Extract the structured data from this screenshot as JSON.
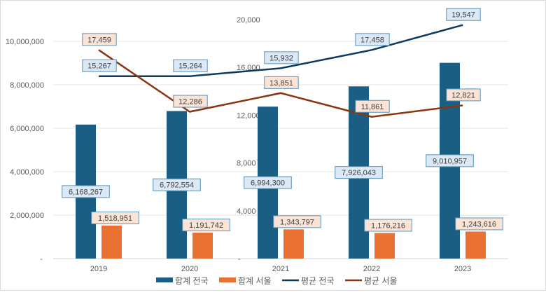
{
  "chart_data": {
    "type": "bar",
    "categories": [
      "2019",
      "2020",
      "2021",
      "2022",
      "2023"
    ],
    "left_axis": {
      "range": [
        0,
        11000000
      ],
      "ticks": [
        0,
        2000000,
        4000000,
        6000000,
        8000000,
        10000000
      ],
      "tick_labels": [
        "-",
        "2,000,000",
        "4,000,000",
        "6,000,000",
        "8,000,000",
        "10,000,000"
      ]
    },
    "right_axis": {
      "range": [
        0,
        20000
      ],
      "ticks": [
        0,
        4000,
        8000,
        12000,
        16000,
        20000
      ],
      "tick_labels": [
        "-",
        "4,000",
        "8,000",
        "12,000",
        "16,000",
        "20,000"
      ]
    },
    "grid": true,
    "legend_position": "bottom",
    "series": [
      {
        "name": "합계 전국",
        "kind": "bar",
        "axis": "left",
        "color": "#1a5f83",
        "label_bg": "#dbe8f5",
        "label_border": "#5b93b8",
        "values": [
          6168267,
          6792554,
          6994300,
          7926043,
          9010957
        ],
        "labels": [
          "6,168,267",
          "6,792,554",
          "6,994,300",
          "7,926,043",
          "9,010,957"
        ]
      },
      {
        "name": "합계 서울",
        "kind": "bar",
        "axis": "left",
        "color": "#e97132",
        "label_bg": "#fbe3d6",
        "label_border": "#5b93b8",
        "values": [
          1518951,
          1191742,
          1343797,
          1176216,
          1243616
        ],
        "labels": [
          "1,518,951",
          "1,191,742",
          "1,343,797",
          "1,176,216",
          "1,243,616"
        ]
      },
      {
        "name": "평균 전국",
        "kind": "line",
        "axis": "right",
        "color": "#0e3a5f",
        "label_bg": "#dbe8f5",
        "label_border": "#5b93b8",
        "values": [
          15267,
          15264,
          15932,
          17458,
          19547
        ],
        "labels": [
          "15,267",
          "15,264",
          "15,932",
          "17,458",
          "19,547"
        ]
      },
      {
        "name": "평균 서울",
        "kind": "line",
        "axis": "right",
        "color": "#8b3510",
        "label_bg": "#fbe3d6",
        "label_border": "#5b93b8",
        "values": [
          17459,
          12286,
          13851,
          11861,
          12821
        ],
        "labels": [
          "17,459",
          "12,286",
          "13,851",
          "11,861",
          "12,821"
        ]
      }
    ]
  }
}
